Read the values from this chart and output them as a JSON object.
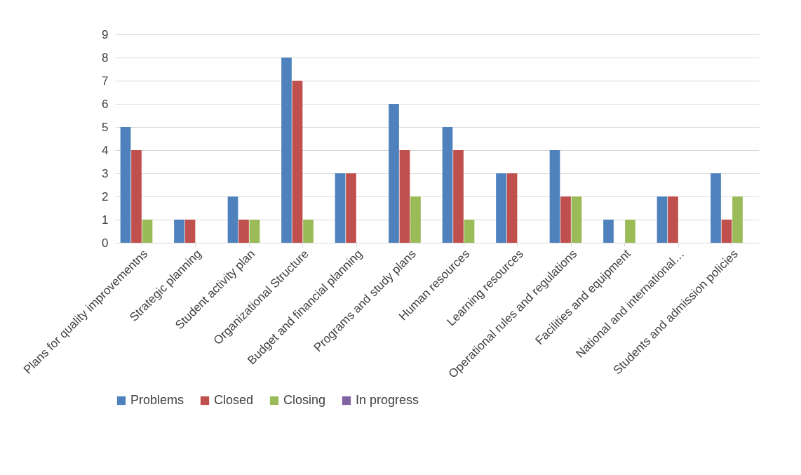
{
  "chart_data": {
    "type": "bar",
    "categories": [
      "Plans for quality improvementns",
      "Strategic planning",
      "Student activity plan",
      "Organizational Structure",
      "Budget and financial planning",
      "Programs and study plans",
      "Human resources",
      "Learning resources",
      "Operational rules and regulations",
      "Facilities and equipment",
      "National and international…",
      "Students and admission policies"
    ],
    "series": [
      {
        "name": "Problems",
        "color": "#4f81bd",
        "values": [
          5,
          1,
          2,
          8,
          3,
          6,
          5,
          3,
          4,
          1,
          2,
          3
        ]
      },
      {
        "name": "Closed",
        "color": "#c0504d",
        "values": [
          4,
          1,
          1,
          7,
          3,
          4,
          4,
          3,
          2,
          0,
          2,
          1
        ]
      },
      {
        "name": "Closing",
        "color": "#9bbb59",
        "values": [
          1,
          0,
          1,
          1,
          0,
          2,
          1,
          0,
          2,
          1,
          0,
          2
        ]
      },
      {
        "name": "In progress",
        "color": "#8064a2",
        "values": [
          0,
          0,
          0,
          0,
          0,
          0,
          0,
          0,
          0,
          0,
          0,
          0
        ]
      }
    ],
    "ylim": [
      0,
      9
    ],
    "yticks": [
      0,
      1,
      2,
      3,
      4,
      5,
      6,
      7,
      8,
      9
    ],
    "grid": "y",
    "legend": "bottom"
  }
}
